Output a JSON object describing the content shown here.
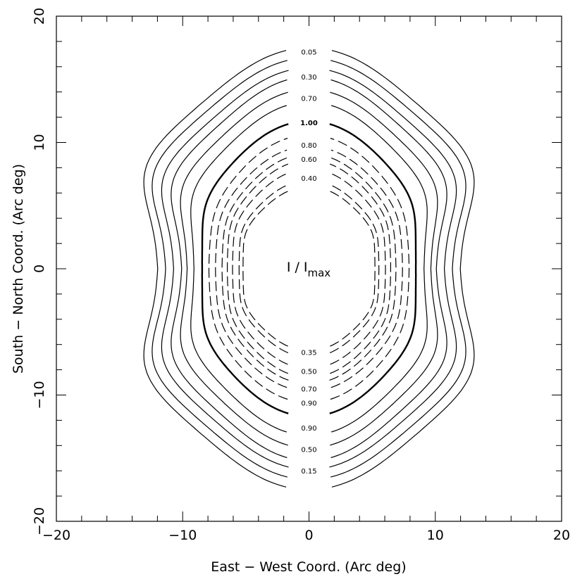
{
  "chart_data": {
    "type": "contour",
    "xlabel": "East − West Coord. (Arc deg)",
    "ylabel": "South − North Coord. (Arc deg)",
    "xlim": [
      -20,
      20
    ],
    "ylim": [
      -20,
      20
    ],
    "x_ticks": [
      "−20",
      "−10",
      "0",
      "10",
      "20"
    ],
    "y_ticks": [
      "−20",
      "−10",
      "0",
      "10",
      "20"
    ],
    "center_annotation": {
      "main": "I / I",
      "subscript": "max"
    },
    "solid_contours": [
      {
        "level": "0.05",
        "x_half_width_at_y0": 11.4,
        "y_extent": 17.5,
        "max_x": 13.9
      },
      {
        "level": "0.15",
        "x_half_width_at_y0": 10.8,
        "y_extent": 16.7,
        "max_x": 13.2
      },
      {
        "level": "0.30",
        "x_half_width_at_y0": 10.2,
        "y_extent": 15.9,
        "max_x": 12.4
      },
      {
        "level": "0.50",
        "x_half_width_at_y0": 9.6,
        "y_extent": 15.2,
        "max_x": 11.6
      },
      {
        "level": "0.70",
        "x_half_width_at_y0": 9.2,
        "y_extent": 14.2,
        "max_x": 10.8
      },
      {
        "level": "0.90",
        "x_half_width_at_y0": 8.7,
        "y_extent": 13.2,
        "max_x": 9.9
      },
      {
        "level": "1.00",
        "x_half_width_at_y0": 8.1,
        "y_extent": 11.7,
        "max_x": 8.8,
        "bold": true
      }
    ],
    "dashed_contours": [
      {
        "level": "0.90",
        "x_half_width_at_y0": 7.6,
        "y_extent": 10.6,
        "max_x": 8.0
      },
      {
        "level": "0.80",
        "x_half_width_at_y0": 7.1,
        "y_extent": 9.7,
        "max_x": 7.5
      },
      {
        "level": "0.70",
        "x_half_width_at_y0": 6.6,
        "y_extent": 9.1,
        "max_x": 7.0
      },
      {
        "level": "0.60",
        "x_half_width_at_y0": 6.2,
        "y_extent": 8.6,
        "max_x": 6.6
      },
      {
        "level": "0.50",
        "x_half_width_at_y0": 5.8,
        "y_extent": 7.9,
        "max_x": 6.2
      },
      {
        "level": "0.40",
        "x_half_width_at_y0": 5.3,
        "y_extent": 7.0,
        "max_x": 5.7
      },
      {
        "level": "0.35",
        "x_half_width_at_y0": 5.0,
        "y_extent": 6.5,
        "max_x": 5.4
      }
    ],
    "labels_top": [
      {
        "text": "0.05",
        "y": 17.2
      },
      {
        "text": "0.30",
        "y": 15.2
      },
      {
        "text": "0.70",
        "y": 13.5
      },
      {
        "text": "1.00",
        "y": 11.6,
        "bold": true
      },
      {
        "text": "0.80",
        "y": 9.8
      },
      {
        "text": "0.60",
        "y": 8.7
      },
      {
        "text": "0.40",
        "y": 7.2
      }
    ],
    "labels_bottom": [
      {
        "text": "0.35",
        "y": -6.6
      },
      {
        "text": "0.50",
        "y": -8.1
      },
      {
        "text": "0.70",
        "y": -9.5
      },
      {
        "text": "0.90",
        "y": -10.6
      },
      {
        "text": "0.90",
        "y": -12.6
      },
      {
        "text": "0.50",
        "y": -14.3
      },
      {
        "text": "0.15",
        "y": -16.0
      }
    ]
  }
}
